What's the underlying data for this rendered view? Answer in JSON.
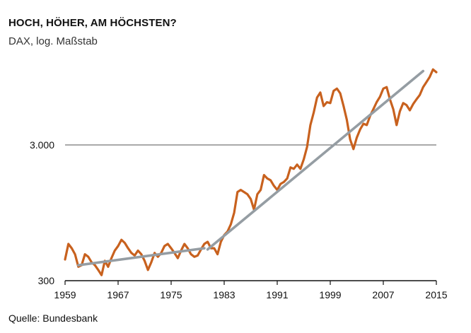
{
  "header": {
    "title": "HOCH, HÖHER, AM HÖCHSTEN?",
    "subtitle": "DAX, log. Maßstab"
  },
  "footer": {
    "source": "Quelle: Bundesbank"
  },
  "colors": {
    "dax_line": "#c8611e",
    "trend_line": "#959da3",
    "gridline": "#777777",
    "text": "#111111"
  },
  "chart_data": {
    "type": "line",
    "title": "HOCH, HÖHER, AM HÖCHSTEN?",
    "subtitle": "DAX, log. Maßstab",
    "y_scale": "log",
    "xlim": [
      1959,
      2015
    ],
    "ylim": [
      300,
      12000
    ],
    "x_ticks": [
      1959,
      1967,
      1975,
      1983,
      1991,
      1999,
      2007,
      2015
    ],
    "x_tick_labels": [
      "1959",
      "1967",
      "1975",
      "1983",
      "1991",
      "1999",
      "2007",
      "2015"
    ],
    "y_ticks": [
      300,
      3000
    ],
    "y_tick_labels": [
      "300",
      "3.000"
    ],
    "grid": "horizontal at y-ticks",
    "legend": "none",
    "series": [
      {
        "x": [
          1959.0,
          1959.5,
          1960.0,
          1960.5,
          1961.0,
          1961.5,
          1962.0,
          1962.5,
          1963.0,
          1963.5,
          1964.0,
          1964.5,
          1965.0,
          1965.5,
          1966.0,
          1966.5,
          1967.0,
          1967.5,
          1968.0,
          1968.5,
          1969.0,
          1969.5,
          1970.0,
          1970.5,
          1971.0,
          1971.5,
          1972.0,
          1972.5,
          1973.0,
          1973.5,
          1974.0,
          1974.5,
          1975.0,
          1975.5,
          1976.0,
          1976.5,
          1977.0,
          1977.5,
          1978.0,
          1978.5,
          1979.0,
          1979.5,
          1980.0,
          1980.5,
          1981.0,
          1981.5,
          1982.0,
          1982.5,
          1983.0,
          1983.5,
          1984.0,
          1984.5,
          1985.0,
          1985.5,
          1986.0,
          1986.5,
          1987.0,
          1987.5,
          1988.0,
          1988.5,
          1989.0,
          1989.5,
          1990.0,
          1990.5,
          1991.0,
          1991.5,
          1992.0,
          1992.5,
          1993.0,
          1993.5,
          1994.0,
          1994.5,
          1995.0,
          1995.5,
          1996.0,
          1996.5,
          1997.0,
          1997.5,
          1998.0,
          1998.5,
          1999.0,
          1999.5,
          2000.0,
          2000.5,
          2001.0,
          2001.5,
          2002.0,
          2002.5,
          2003.0,
          2003.5,
          2004.0,
          2004.5,
          2005.0,
          2005.5,
          2006.0,
          2006.5,
          2007.0,
          2007.5,
          2008.0,
          2008.5,
          2009.0,
          2009.5,
          2010.0,
          2010.5,
          2011.0,
          2011.5,
          2012.0,
          2012.5,
          2013.0,
          2013.5,
          2014.0,
          2014.5,
          2015.0
        ],
        "values": [
          430,
          560,
          520,
          470,
          380,
          390,
          470,
          450,
          410,
          390,
          360,
          330,
          420,
          380,
          440,
          500,
          540,
          600,
          570,
          520,
          480,
          460,
          500,
          470,
          420,
          360,
          410,
          480,
          450,
          480,
          540,
          560,
          520,
          480,
          440,
          500,
          560,
          520,
          470,
          450,
          460,
          510,
          560,
          580,
          520,
          520,
          470,
          580,
          650,
          690,
          780,
          950,
          1350,
          1400,
          1350,
          1300,
          1200,
          1000,
          1300,
          1400,
          1800,
          1700,
          1650,
          1500,
          1400,
          1550,
          1600,
          1700,
          2050,
          2000,
          2150,
          2000,
          2350,
          2900,
          4200,
          5200,
          6700,
          7300,
          5800,
          6200,
          6100,
          7500,
          7800,
          7200,
          5800,
          4600,
          3300,
          2800,
          3400,
          3900,
          4300,
          4200,
          4900,
          5500,
          6200,
          6800,
          7800,
          8000,
          6500,
          5500,
          4200,
          5300,
          6100,
          5900,
          5400,
          6000,
          6500,
          7000,
          8000,
          8700,
          9500,
          10800,
          10300
        ]
      },
      {
        "x": [
          1961.0,
          1980.0
        ],
        "values": [
          390,
          520
        ]
      },
      {
        "x": [
          1980.5,
          2013.0
        ],
        "values": [
          510,
          10500
        ]
      }
    ]
  }
}
